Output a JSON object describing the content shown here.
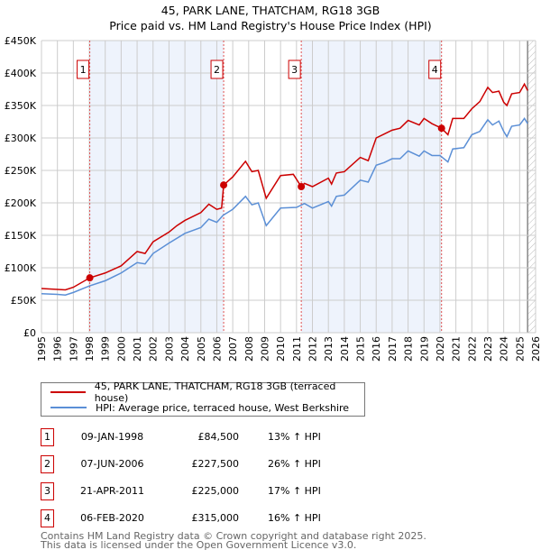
{
  "chart_data": {
    "type": "line",
    "title": "45, PARK LANE, THATCHAM, RG18 3GB",
    "subtitle": "Price paid vs. HM Land Registry's House Price Index (HPI)",
    "xlim": [
      1995,
      2026
    ],
    "ylim": [
      0,
      450000
    ],
    "x_ticks": [
      "1995",
      "1996",
      "1997",
      "1998",
      "1999",
      "2000",
      "2001",
      "2002",
      "2003",
      "2004",
      "2005",
      "2006",
      "2007",
      "2008",
      "2009",
      "2010",
      "2011",
      "2012",
      "2013",
      "2014",
      "2015",
      "2016",
      "2017",
      "2018",
      "2019",
      "2020",
      "2021",
      "2022",
      "2023",
      "2024",
      "2025",
      "2026"
    ],
    "y_ticks": [
      {
        "v": 0,
        "l": "£0"
      },
      {
        "v": 50000,
        "l": "£50K"
      },
      {
        "v": 100000,
        "l": "£100K"
      },
      {
        "v": 150000,
        "l": "£150K"
      },
      {
        "v": 200000,
        "l": "£200K"
      },
      {
        "v": 250000,
        "l": "£250K"
      },
      {
        "v": 300000,
        "l": "£300K"
      },
      {
        "v": 350000,
        "l": "£350K"
      },
      {
        "v": 400000,
        "l": "£400K"
      },
      {
        "v": 450000,
        "l": "£450K"
      }
    ],
    "grid": true,
    "series": [
      {
        "name": "45, PARK LANE, THATCHAM, RG18 3GB (terraced house)",
        "color": "#cc0000",
        "points": [
          [
            1995,
            68
          ],
          [
            1996.5,
            66
          ],
          [
            1997,
            70
          ],
          [
            1998.03,
            84.5
          ],
          [
            1999,
            92
          ],
          [
            2000,
            103
          ],
          [
            2001,
            125
          ],
          [
            2001.5,
            122
          ],
          [
            2002,
            140
          ],
          [
            2003,
            155
          ],
          [
            2003.5,
            165
          ],
          [
            2004,
            173
          ],
          [
            2005,
            185
          ],
          [
            2005.5,
            198
          ],
          [
            2006,
            190
          ],
          [
            2006.3,
            192
          ],
          [
            2006.43,
            227.5
          ],
          [
            2007,
            240
          ],
          [
            2007.8,
            264
          ],
          [
            2008.2,
            248
          ],
          [
            2008.6,
            250
          ],
          [
            2009.1,
            207
          ],
          [
            2010,
            242
          ],
          [
            2010.8,
            244
          ],
          [
            2011.3,
            225
          ],
          [
            2011.5,
            230
          ],
          [
            2012,
            225
          ],
          [
            2013,
            238
          ],
          [
            2013.2,
            229
          ],
          [
            2013.5,
            246
          ],
          [
            2014,
            248
          ],
          [
            2015,
            270
          ],
          [
            2015.5,
            265
          ],
          [
            2016,
            300
          ],
          [
            2016.5,
            306
          ],
          [
            2017,
            312
          ],
          [
            2017.5,
            315
          ],
          [
            2018,
            327
          ],
          [
            2018.7,
            320
          ],
          [
            2019,
            330
          ],
          [
            2019.5,
            322
          ],
          [
            2020.1,
            315
          ],
          [
            2020.5,
            305
          ],
          [
            2020.8,
            330
          ],
          [
            2021.5,
            330
          ],
          [
            2022,
            345
          ],
          [
            2022.5,
            356
          ],
          [
            2023,
            378
          ],
          [
            2023.3,
            370
          ],
          [
            2023.7,
            372
          ],
          [
            2024,
            355
          ],
          [
            2024.2,
            350
          ],
          [
            2024.5,
            368
          ],
          [
            2025,
            370
          ],
          [
            2025.3,
            383
          ],
          [
            2025.5,
            373
          ]
        ]
      },
      {
        "name": "HPI: Average price, terraced house, West Berkshire",
        "color": "#5b8fd6",
        "points": [
          [
            1995,
            60
          ],
          [
            1996,
            59
          ],
          [
            1996.5,
            58
          ],
          [
            1997,
            62
          ],
          [
            1998,
            72
          ],
          [
            1999,
            80
          ],
          [
            2000,
            92
          ],
          [
            2001,
            108
          ],
          [
            2001.5,
            106
          ],
          [
            2002,
            122
          ],
          [
            2003,
            138
          ],
          [
            2004,
            153
          ],
          [
            2005,
            162
          ],
          [
            2005.5,
            175
          ],
          [
            2006,
            170
          ],
          [
            2006.4,
            181
          ],
          [
            2007,
            190
          ],
          [
            2007.8,
            210
          ],
          [
            2008.2,
            197
          ],
          [
            2008.6,
            200
          ],
          [
            2009.1,
            165
          ],
          [
            2010,
            192
          ],
          [
            2011,
            193
          ],
          [
            2011.5,
            199
          ],
          [
            2012,
            192
          ],
          [
            2013,
            202
          ],
          [
            2013.2,
            195
          ],
          [
            2013.5,
            210
          ],
          [
            2014,
            212
          ],
          [
            2015,
            235
          ],
          [
            2015.5,
            232
          ],
          [
            2016,
            258
          ],
          [
            2016.5,
            262
          ],
          [
            2017,
            268
          ],
          [
            2017.5,
            268
          ],
          [
            2018,
            280
          ],
          [
            2018.7,
            272
          ],
          [
            2019,
            280
          ],
          [
            2019.5,
            273
          ],
          [
            2020,
            273
          ],
          [
            2020.5,
            263
          ],
          [
            2020.8,
            283
          ],
          [
            2021.5,
            285
          ],
          [
            2022,
            305
          ],
          [
            2022.5,
            310
          ],
          [
            2023,
            328
          ],
          [
            2023.3,
            320
          ],
          [
            2023.7,
            326
          ],
          [
            2024,
            310
          ],
          [
            2024.2,
            302
          ],
          [
            2024.5,
            318
          ],
          [
            2025,
            320
          ],
          [
            2025.3,
            330
          ],
          [
            2025.5,
            322
          ]
        ]
      }
    ],
    "y_unit": "thousands GBP",
    "sales": [
      {
        "n": "1",
        "x": 1998.03,
        "y": 84.5
      },
      {
        "n": "2",
        "x": 2006.43,
        "y": 227.5
      },
      {
        "n": "3",
        "x": 2011.3,
        "y": 225
      },
      {
        "n": "4",
        "x": 2020.1,
        "y": 315
      }
    ],
    "shaded_ranges": [
      [
        1998.03,
        2006.43
      ],
      [
        2011.3,
        2020.1
      ]
    ],
    "forecast_from": 2025.5,
    "legend_position": "below"
  },
  "legend": {
    "red": "45, PARK LANE, THATCHAM, RG18 3GB (terraced house)",
    "blue": "HPI: Average price, terraced house, West Berkshire"
  },
  "transactions": [
    {
      "n": "1",
      "date": "09-JAN-1998",
      "price": "£84,500",
      "hpi": "13% ↑ HPI"
    },
    {
      "n": "2",
      "date": "07-JUN-2006",
      "price": "£227,500",
      "hpi": "26% ↑ HPI"
    },
    {
      "n": "3",
      "date": "21-APR-2011",
      "price": "£225,000",
      "hpi": "17% ↑ HPI"
    },
    {
      "n": "4",
      "date": "06-FEB-2020",
      "price": "£315,000",
      "hpi": "16% ↑ HPI"
    }
  ],
  "footer": {
    "line1": "Contains HM Land Registry data © Crown copyright and database right 2025.",
    "line2": "This data is licensed under the Open Government Licence v3.0."
  }
}
